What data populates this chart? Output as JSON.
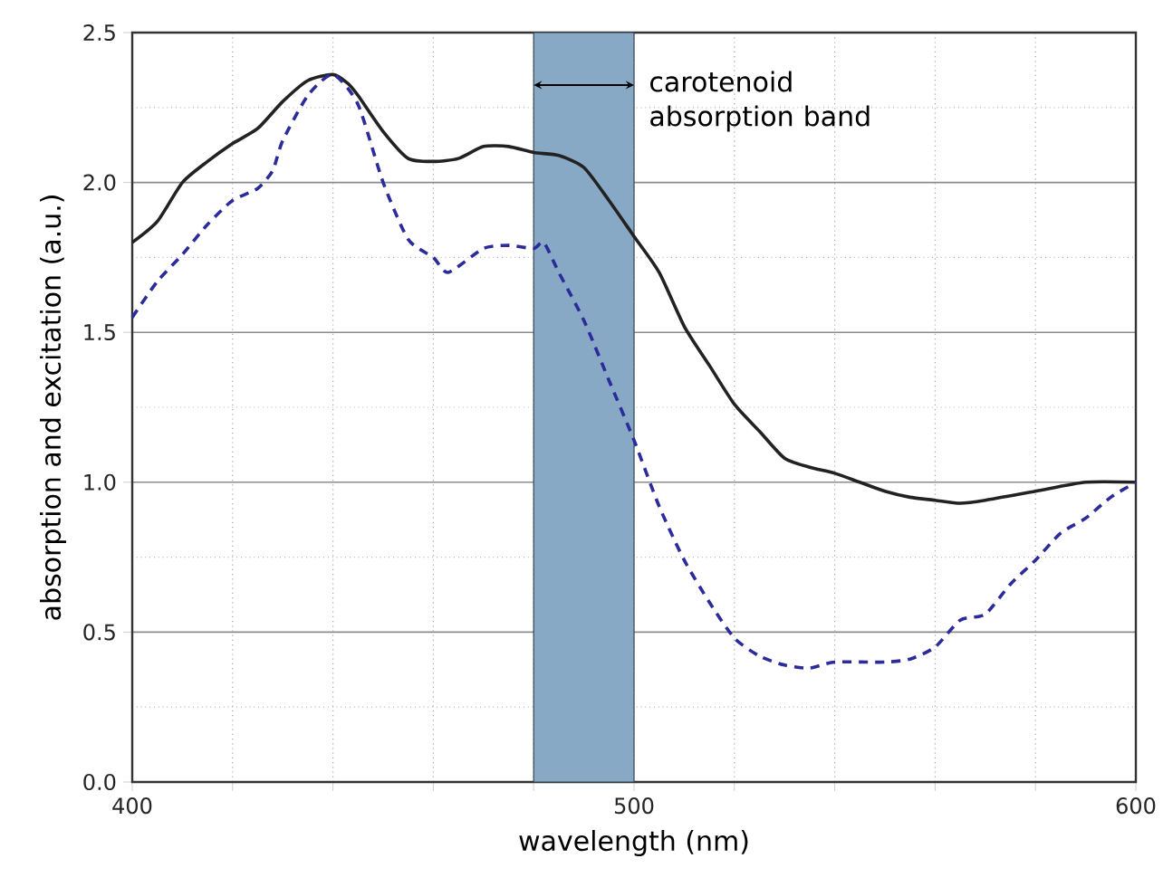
{
  "chart_data": {
    "type": "line",
    "xlabel": "wavelength (nm)",
    "ylabel": "absorption and excitation (a.u.)",
    "xlim": [
      400,
      600
    ],
    "ylim": [
      0,
      2.5
    ],
    "xticks": [
      400,
      {
        "value": 420,
        "label": null
      },
      {
        "value": 440,
        "label": null
      },
      {
        "value": 460,
        "label": null
      },
      {
        "value": 480,
        "label": null
      },
      500,
      {
        "value": 520,
        "label": null
      },
      {
        "value": 540,
        "label": null
      },
      {
        "value": 560,
        "label": null
      },
      {
        "value": 580,
        "label": null
      },
      600
    ],
    "yticks": [
      {
        "value": 0,
        "label": "0.0"
      },
      {
        "value": 0.25,
        "label": null
      },
      0.5,
      {
        "value": 0.75,
        "label": null
      },
      {
        "value": 1,
        "label": "1.0"
      },
      {
        "value": 1.25,
        "label": null
      },
      1.5,
      {
        "value": 1.75,
        "label": null
      },
      {
        "value": 2,
        "label": "2.0"
      },
      {
        "value": 2.25,
        "label": null
      },
      2.5
    ],
    "grid": true,
    "bands": [
      {
        "axis": "x",
        "from": 480,
        "to": 500,
        "label": "carotenoid absorption band",
        "color": "#88a9c6"
      }
    ],
    "series": [
      {
        "color": "#222222",
        "line_style": "solid",
        "x": [
          400,
          405,
          410,
          415,
          420,
          425,
          430,
          435,
          440,
          443,
          445,
          450,
          455,
          460,
          465,
          470,
          475,
          480,
          485,
          490,
          495,
          500,
          505,
          510,
          515,
          520,
          525,
          530,
          535,
          540,
          545,
          550,
          555,
          560,
          565,
          570,
          580,
          590,
          600
        ],
        "values": [
          1.8,
          1.87,
          2.0,
          2.07,
          2.13,
          2.18,
          2.27,
          2.34,
          2.36,
          2.33,
          2.29,
          2.17,
          2.08,
          2.07,
          2.08,
          2.12,
          2.12,
          2.1,
          2.09,
          2.05,
          1.94,
          1.82,
          1.7,
          1.52,
          1.39,
          1.26,
          1.17,
          1.08,
          1.05,
          1.03,
          1.0,
          0.97,
          0.95,
          0.94,
          0.93,
          0.94,
          0.97,
          1.0,
          1.0
        ]
      },
      {
        "color": "#2b2b9a",
        "line_style": "dashed",
        "x": [
          400,
          405,
          410,
          415,
          420,
          425,
          428,
          430,
          435,
          440,
          445,
          450,
          455,
          460,
          463,
          470,
          475,
          480,
          482,
          485,
          490,
          495,
          500,
          505,
          510,
          515,
          520,
          525,
          530,
          535,
          540,
          550,
          555,
          560,
          565,
          570,
          575,
          580,
          585,
          590,
          595,
          600
        ],
        "values": [
          1.55,
          1.67,
          1.76,
          1.86,
          1.94,
          1.98,
          2.04,
          2.14,
          2.29,
          2.36,
          2.26,
          2.0,
          1.81,
          1.75,
          1.7,
          1.78,
          1.79,
          1.78,
          1.8,
          1.7,
          1.54,
          1.34,
          1.14,
          0.92,
          0.74,
          0.6,
          0.48,
          0.42,
          0.39,
          0.38,
          0.4,
          0.4,
          0.41,
          0.45,
          0.54,
          0.56,
          0.66,
          0.74,
          0.83,
          0.88,
          0.95,
          1.0
        ]
      }
    ]
  }
}
